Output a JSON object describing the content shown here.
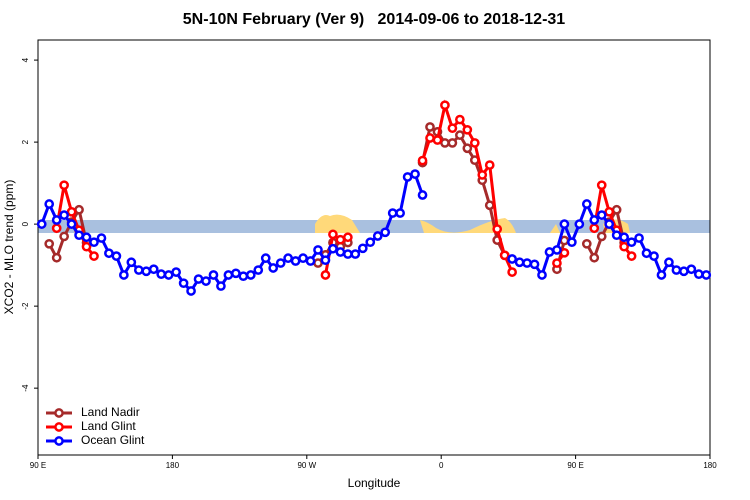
{
  "chart_data": {
    "type": "line",
    "title": "5N-10N February (Ver 9)   2014-09-06 to 2018-12-31",
    "x_label": "Longitude",
    "y_label": "XCO2 - MLO trend (ppm)",
    "xlim": [
      90,
      540
    ],
    "xticks": [
      {
        "value": 90,
        "label": "90 E"
      },
      180,
      {
        "value": 270,
        "label": "90 W"
      },
      {
        "value": 360,
        "label": "0"
      },
      {
        "value": 450,
        "label": "90 E"
      },
      {
        "value": 540,
        "label": "180"
      }
    ],
    "ylim": [
      -5.63,
      4.49
    ],
    "yticks": [
      4,
      2,
      0,
      -2,
      -4
    ],
    "legend": "bottom-left",
    "x": [
      92.5,
      97.5,
      102.5,
      107.5,
      112.5,
      117.5,
      122.5,
      127.5,
      132.5,
      137.5,
      142.5,
      147.5,
      152.5,
      157.5,
      162.5,
      167.5,
      172.5,
      177.5,
      182.5,
      187.5,
      192.5,
      197.5,
      202.5,
      207.5,
      212.5,
      217.5,
      222.5,
      227.5,
      232.5,
      237.5,
      242.5,
      247.5,
      252.5,
      257.5,
      262.5,
      267.5,
      272.5,
      277.5,
      282.5,
      287.5,
      292.5,
      297.5,
      302.5,
      307.5,
      312.5,
      317.5,
      322.5,
      327.5,
      332.5,
      337.5,
      342.5,
      347.5,
      352.5,
      357.5,
      362.5,
      367.5,
      372.5,
      377.5,
      382.5,
      387.5,
      392.5,
      397.5,
      402.5,
      407.5,
      412.5,
      417.5,
      422.5,
      427.5,
      432.5,
      437.5,
      442.5,
      447.5,
      452.5,
      457.5,
      462.5,
      467.5,
      472.5,
      477.5,
      482.5,
      487.5,
      492.5,
      497.5,
      502.5,
      507.5,
      512.5,
      517.5,
      522.5,
      527.5,
      532.5,
      537.5
    ],
    "series": [
      {
        "name": "Land Nadir",
        "color": "#a52a2a",
        "values": [
          null,
          -0.48,
          -0.82,
          -0.3,
          0.05,
          0.35,
          -0.45,
          null,
          null,
          null,
          null,
          null,
          null,
          null,
          null,
          null,
          null,
          null,
          null,
          null,
          null,
          null,
          null,
          null,
          null,
          null,
          null,
          null,
          null,
          null,
          null,
          null,
          null,
          null,
          null,
          null,
          null,
          -0.95,
          -0.75,
          -0.45,
          -0.55,
          -0.45,
          null,
          null,
          null,
          null,
          null,
          null,
          null,
          null,
          null,
          1.5,
          2.37,
          2.25,
          1.98,
          1.98,
          2.17,
          1.85,
          1.56,
          1.07,
          0.46,
          -0.39,
          -0.76,
          null,
          null,
          null,
          null,
          null,
          null,
          -1.1,
          -0.4,
          null,
          null,
          -0.48,
          -0.82,
          -0.3,
          0.05,
          0.35,
          -0.45,
          null,
          null,
          null,
          null,
          null,
          null,
          null,
          null,
          null,
          null,
          null
        ]
      },
      {
        "name": "Land Glint",
        "color": "#ff0000",
        "values": [
          null,
          null,
          -0.1,
          0.95,
          0.3,
          -0.15,
          -0.55,
          -0.78,
          null,
          null,
          null,
          null,
          null,
          null,
          null,
          null,
          null,
          null,
          null,
          null,
          null,
          null,
          null,
          null,
          null,
          null,
          null,
          null,
          null,
          null,
          null,
          null,
          null,
          null,
          null,
          null,
          null,
          null,
          -1.24,
          -0.25,
          -0.38,
          -0.32,
          null,
          null,
          null,
          null,
          null,
          null,
          null,
          null,
          null,
          1.55,
          2.1,
          2.05,
          2.9,
          2.34,
          2.55,
          2.3,
          1.98,
          1.2,
          1.44,
          -0.12,
          -0.76,
          -1.17,
          null,
          null,
          null,
          null,
          null,
          -0.95,
          -0.7,
          null,
          null,
          null,
          -0.1,
          0.95,
          0.3,
          -0.15,
          -0.55,
          -0.78,
          null,
          null,
          null,
          null,
          null,
          null,
          null,
          null,
          null,
          null
        ]
      },
      {
        "name": "Ocean Glint",
        "color": "#0000ff",
        "values": [
          0,
          0.49,
          0.1,
          0.22,
          0,
          -0.27,
          -0.32,
          -0.44,
          -0.34,
          -0.71,
          -0.78,
          -1.24,
          -0.93,
          -1.12,
          -1.15,
          -1.1,
          -1.22,
          -1.24,
          -1.17,
          -1.44,
          -1.63,
          -1.34,
          -1.39,
          -1.24,
          -1.51,
          -1.24,
          -1.2,
          -1.27,
          -1.24,
          -1.12,
          -0.83,
          -1.07,
          -0.95,
          -0.83,
          -0.9,
          -0.83,
          -0.9,
          -0.63,
          -0.88,
          -0.6,
          -0.68,
          -0.73,
          -0.73,
          -0.59,
          -0.44,
          -0.29,
          -0.2,
          0.27,
          0.27,
          1.15,
          1.22,
          0.71,
          null,
          null,
          null,
          null,
          null,
          null,
          null,
          null,
          null,
          null,
          null,
          -0.85,
          -0.93,
          -0.95,
          -0.98,
          -1.24,
          -0.68,
          -0.63,
          0,
          -0.44,
          0,
          0.49,
          0.1,
          0.22,
          0,
          -0.27,
          -0.32,
          -0.44,
          -0.34,
          -0.71,
          -0.78,
          -1.24,
          -0.93,
          -1.12,
          -1.15,
          -1.1,
          -1.22,
          -1.24
        ]
      }
    ]
  }
}
